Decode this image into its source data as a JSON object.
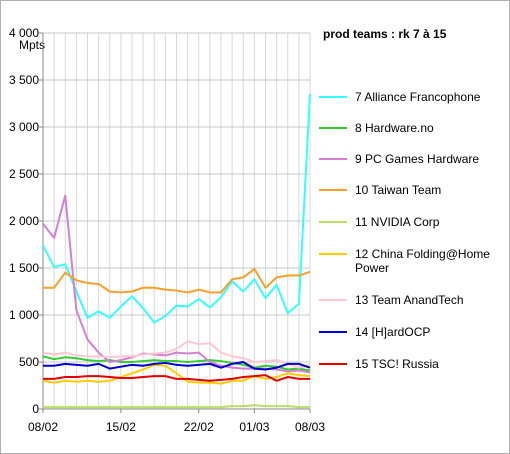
{
  "chart_data": {
    "type": "line",
    "title": "prod teams : rk 7 à 15",
    "y_label": "Mpts",
    "categories": [
      "08/02",
      null,
      null,
      null,
      null,
      null,
      null,
      "15/02",
      null,
      null,
      null,
      null,
      null,
      null,
      "22/02",
      null,
      null,
      null,
      null,
      "01/03",
      null,
      null,
      null,
      null,
      "08/03"
    ],
    "ylim": [
      0,
      4000
    ],
    "yticks": [
      0,
      500,
      {
        "value": 1000,
        "label": "1 000"
      },
      {
        "value": 1500,
        "label": "1 500"
      },
      {
        "value": 2000,
        "label": "2 000"
      },
      {
        "value": 2500,
        "label": "2 500"
      },
      {
        "value": 3000,
        "label": "3 000"
      },
      {
        "value": 3500,
        "label": "3 500"
      },
      {
        "value": 4000,
        "label": "4 000"
      }
    ],
    "grid": true,
    "series": [
      {
        "name": "7 Alliance Francophone",
        "color": "#33ffff",
        "values": [
          1740,
          1510,
          1540,
          1250,
          970,
          1040,
          970,
          1090,
          1200,
          1070,
          920,
          990,
          1100,
          1090,
          1170,
          1080,
          1190,
          1360,
          1250,
          1380,
          1180,
          1320,
          1020,
          1120,
          3350
        ]
      },
      {
        "name": "8 Hardware.no",
        "color": "#33cc33",
        "values": [
          560,
          530,
          550,
          540,
          520,
          510,
          520,
          500,
          500,
          510,
          520,
          510,
          510,
          500,
          510,
          520,
          510,
          490,
          470,
          440,
          460,
          450,
          420,
          430,
          410
        ]
      },
      {
        "name": "9 PC Games Hardware",
        "color": "#d47fd4",
        "values": [
          1970,
          1820,
          2270,
          1050,
          740,
          600,
          500,
          520,
          550,
          590,
          580,
          570,
          600,
          590,
          600,
          500,
          460,
          440,
          430,
          430,
          430,
          420,
          400,
          410,
          390
        ]
      },
      {
        "name": "10 Taiwan Team",
        "color": "#f5a02a",
        "values": [
          1290,
          1290,
          1450,
          1370,
          1340,
          1330,
          1250,
          1240,
          1250,
          1290,
          1290,
          1270,
          1260,
          1240,
          1270,
          1240,
          1240,
          1380,
          1400,
          1490,
          1290,
          1400,
          1420,
          1420,
          1460
        ]
      },
      {
        "name": "11 NVIDIA Corp",
        "color": "#b8e065",
        "values": [
          20,
          20,
          20,
          20,
          20,
          20,
          20,
          20,
          20,
          20,
          20,
          20,
          20,
          20,
          20,
          20,
          20,
          30,
          30,
          40,
          30,
          30,
          30,
          20,
          20
        ]
      },
      {
        "name": "12 China Folding@Home Power",
        "color": "#ffcc00",
        "values": [
          300,
          280,
          300,
          290,
          300,
          290,
          300,
          340,
          380,
          420,
          470,
          460,
          380,
          290,
          280,
          280,
          270,
          300,
          300,
          350,
          320,
          340,
          380,
          360,
          350
        ]
      },
      {
        "name": "13 Team AnandTech",
        "color": "#ffc8d2",
        "values": [
          600,
          580,
          600,
          570,
          560,
          560,
          550,
          560,
          560,
          580,
          590,
          600,
          640,
          720,
          690,
          700,
          600,
          560,
          540,
          500,
          510,
          520,
          480,
          440,
          470
        ]
      },
      {
        "name": "14 [H]ardOCP",
        "color": "#0000cc",
        "values": [
          460,
          460,
          480,
          470,
          460,
          480,
          430,
          450,
          470,
          460,
          480,
          490,
          470,
          460,
          470,
          480,
          440,
          480,
          500,
          430,
          420,
          440,
          480,
          480,
          440
        ]
      },
      {
        "name": "15 TSC! Russia",
        "color": "#e00000",
        "values": [
          320,
          320,
          340,
          340,
          350,
          350,
          340,
          330,
          330,
          340,
          350,
          350,
          320,
          320,
          310,
          300,
          310,
          320,
          340,
          350,
          360,
          300,
          340,
          320,
          320
        ]
      }
    ]
  }
}
